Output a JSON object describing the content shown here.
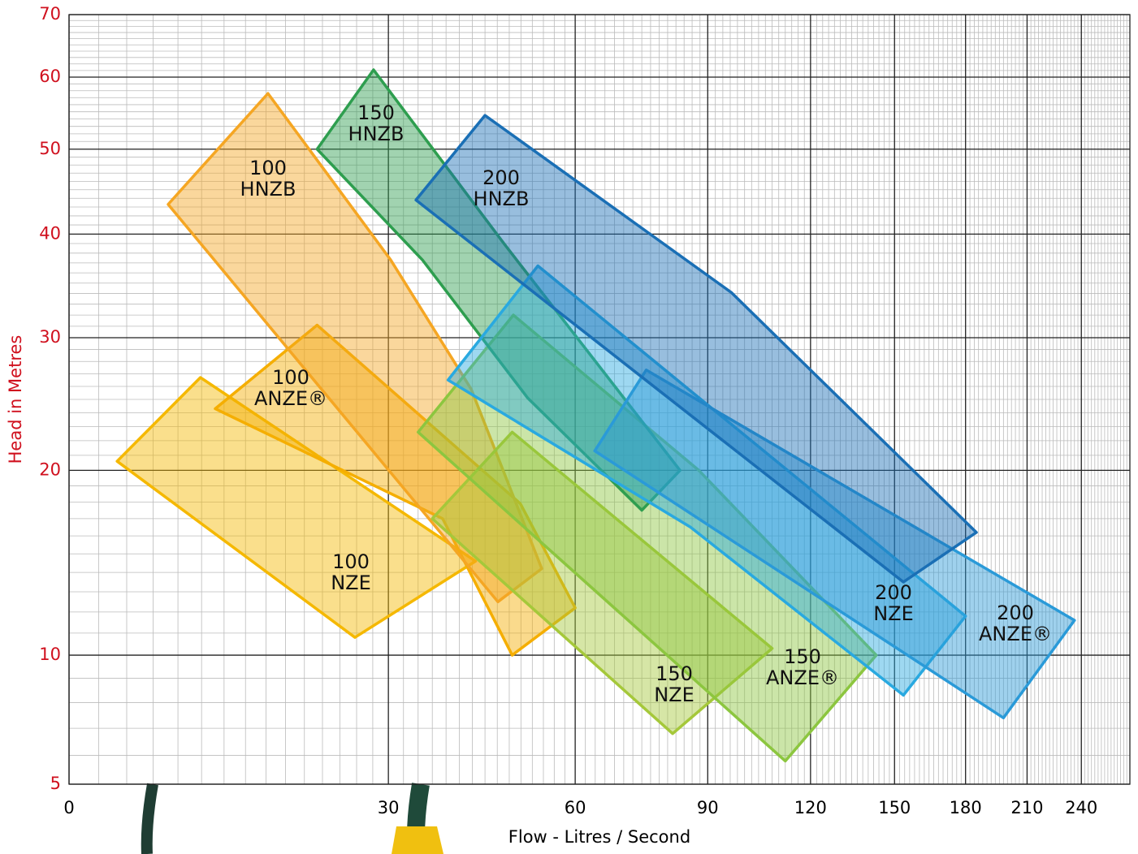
{
  "chart_data": {
    "type": "polygon",
    "xlabel": "Flow - Litres / Second",
    "ylabel": "Head in Metres",
    "xlim": [
      0,
      270
    ],
    "xticks": [
      0,
      30,
      60,
      90,
      120,
      150,
      180,
      210,
      240
    ],
    "ylim": [
      5,
      70
    ],
    "yticks": [
      5,
      10,
      20,
      30,
      40,
      50,
      60,
      70
    ],
    "grid": true,
    "xminor_step": 2,
    "yminor_step": 1,
    "series": [
      {
        "name": "100\nNZE",
        "color": "#f5b800",
        "x": [
          3.3,
          9.9,
          42.5,
          25.8
        ],
        "values": [
          20.6,
          26.7,
          14.6,
          10.8
        ]
      },
      {
        "name": "100\nANZE®",
        "color": "#f5ae00",
        "x": [
          11.2,
          21.4,
          49.9,
          60,
          48.5,
          37.5
        ],
        "values": [
          24.3,
          31.1,
          17.9,
          12.2,
          10,
          17
        ]
      },
      {
        "name": "100\nHNZB",
        "color": "#f5a623",
        "x": [
          7.2,
          16.2,
          30.3,
          41.8,
          53.7,
          46.1
        ],
        "values": [
          43.3,
          57.6,
          37.3,
          25.8,
          14.2,
          12.5
        ]
      },
      {
        "name": "150\nNZE",
        "color": "#a5c83a",
        "x": [
          36,
          48.5,
          108,
          81.2
        ],
        "values": [
          17,
          22.6,
          10.3,
          6.8
        ]
      },
      {
        "name": "150\nANZE®",
        "color": "#8cc63f",
        "x": [
          34,
          48.7,
          87.7,
          143,
          112
        ],
        "values": [
          22.6,
          32,
          20,
          10,
          5.8
        ]
      },
      {
        "name": "150\nHNZB",
        "color": "#2e9e4f",
        "x": [
          21.4,
          28.1,
          47.1,
          83,
          74,
          51.2,
          34.6
        ],
        "values": [
          50,
          61.1,
          39,
          20,
          17.5,
          25.1,
          37.3
        ]
      },
      {
        "name": "200\nNZE",
        "color": "#29a9e0",
        "x": [
          38.3,
          53,
          180,
          153.5,
          85.6
        ],
        "values": [
          26.5,
          36.7,
          11.8,
          8.3,
          16.5
        ]
      },
      {
        "name": "200\nANZE®",
        "color": "#2a9ad8",
        "x": [
          63.9,
          75,
          236,
          198
        ],
        "values": [
          21.3,
          27.3,
          11.6,
          7.4
        ]
      },
      {
        "name": "200\nHNZB",
        "color": "#1a6fb5",
        "x": [
          33.7,
          44,
          96.3,
          185,
          153.5
        ],
        "values": [
          43.8,
          54.5,
          34.1,
          16.2,
          13.5
        ]
      }
    ]
  }
}
